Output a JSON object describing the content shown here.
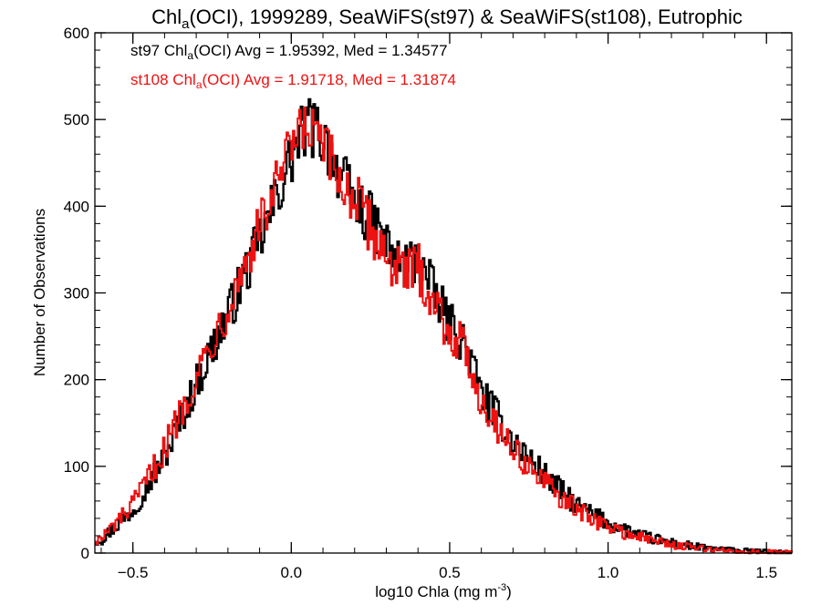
{
  "chart_data": {
    "type": "histogram",
    "title": {
      "prefix": "Chl",
      "subscript": "a",
      "suffix": "(OCI), 1999289, SeaWiFS(st97) & SeaWiFS(st108), Eutrophic"
    },
    "xlabel": {
      "main": "log10 Chla (mg m",
      "superscript": "-3",
      "close": ")"
    },
    "ylabel": "Number of Observations",
    "xlim": [
      -0.62,
      1.58
    ],
    "ylim": [
      0,
      600
    ],
    "x_ticks": [
      {
        "value": -0.5,
        "label": "−0.5"
      },
      {
        "value": 0.0,
        "label": "0.0"
      },
      {
        "value": 0.5,
        "label": "0.5"
      },
      {
        "value": 1.0,
        "label": "1.0"
      },
      {
        "value": 1.5,
        "label": "1.5"
      }
    ],
    "x_minor_step": 0.1,
    "y_ticks": [
      {
        "value": 0,
        "label": "0"
      },
      {
        "value": 100,
        "label": "100"
      },
      {
        "value": 200,
        "label": "200"
      },
      {
        "value": 300,
        "label": "300"
      },
      {
        "value": 400,
        "label": "400"
      },
      {
        "value": 500,
        "label": "500"
      },
      {
        "value": 600,
        "label": "600"
      }
    ],
    "y_minor_step": 20,
    "grid": false,
    "legend_position": "top-left",
    "series": [
      {
        "color": "#000000",
        "legend": {
          "prefix": "st97 Chl",
          "subscript": "a",
          "suffix": "(OCI) Avg = 1.95392, Med = 1.34577"
        },
        "x": [
          -0.6,
          -0.5,
          -0.4,
          -0.3,
          -0.2,
          -0.1,
          0.0,
          0.05,
          0.1,
          0.15,
          0.2,
          0.25,
          0.3,
          0.35,
          0.4,
          0.45,
          0.5,
          0.55,
          0.6,
          0.7,
          0.8,
          0.9,
          1.0,
          1.1,
          1.2,
          1.3,
          1.4,
          1.5,
          1.58
        ],
        "y": [
          15,
          50,
          110,
          195,
          275,
          360,
          455,
          495,
          480,
          440,
          405,
          385,
          355,
          330,
          340,
          300,
          265,
          240,
          185,
          130,
          90,
          55,
          35,
          20,
          12,
          6,
          3,
          1,
          0
        ]
      },
      {
        "color": "#ee1111",
        "legend": {
          "prefix": "st108 Chl",
          "subscript": "a",
          "suffix": "(OCI) Avg = 1.91718, Med = 1.31874"
        },
        "x": [
          -0.6,
          -0.5,
          -0.4,
          -0.3,
          -0.2,
          -0.1,
          0.0,
          0.05,
          0.1,
          0.15,
          0.2,
          0.25,
          0.3,
          0.35,
          0.4,
          0.45,
          0.5,
          0.55,
          0.6,
          0.7,
          0.8,
          0.9,
          1.0,
          1.1,
          1.2,
          1.3,
          1.4,
          1.5,
          1.58
        ],
        "y": [
          16,
          55,
          120,
          205,
          285,
          375,
          465,
          490,
          470,
          430,
          410,
          375,
          345,
          320,
          330,
          290,
          255,
          235,
          175,
          120,
          80,
          50,
          30,
          18,
          10,
          5,
          2,
          1,
          0
        ]
      }
    ]
  }
}
